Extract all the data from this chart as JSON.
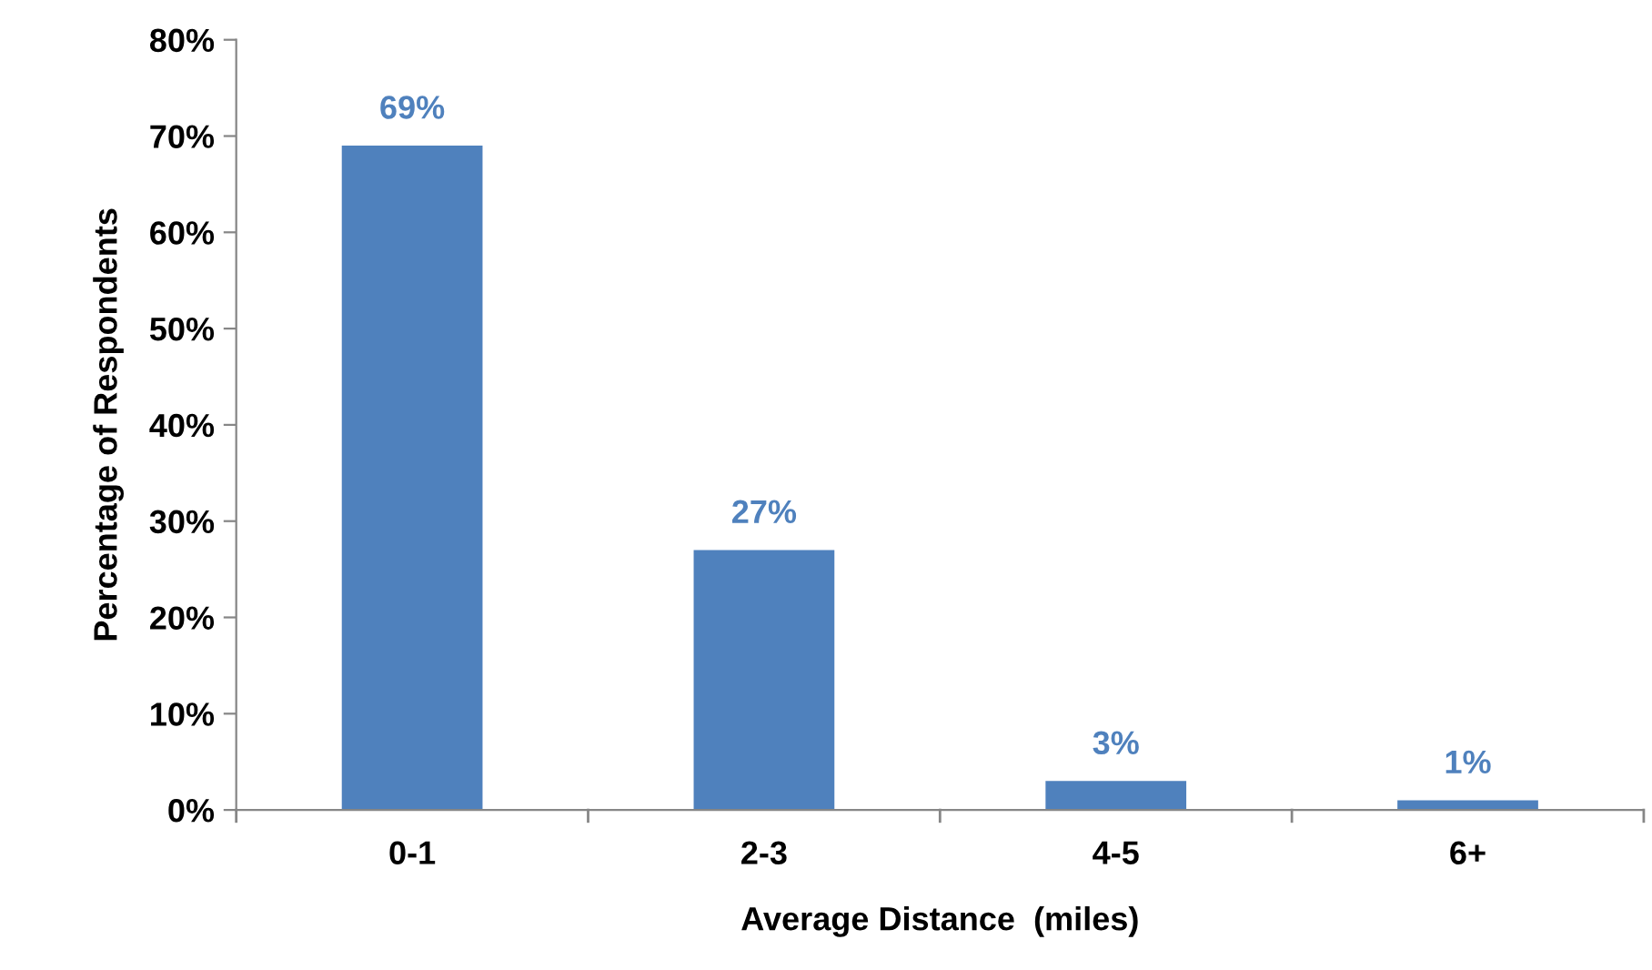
{
  "chart_data": {
    "type": "bar",
    "xlabel": "Average Distance  (miles)",
    "ylabel": "Percentage of Respondents",
    "categories": [
      "0-1",
      "2-3",
      "4-5",
      "6+"
    ],
    "values": [
      69,
      27,
      3,
      1
    ],
    "value_labels": [
      "69%",
      "27%",
      "3%",
      "1%"
    ],
    "color": "#4f81bd",
    "ylim": [
      0,
      80
    ],
    "yticks": [
      {
        "value": 0,
        "label": "0%"
      },
      {
        "value": 10,
        "label": "10%"
      },
      {
        "value": 20,
        "label": "20%"
      },
      {
        "value": 30,
        "label": "30%"
      },
      {
        "value": 40,
        "label": "40%"
      },
      {
        "value": 50,
        "label": "50%"
      },
      {
        "value": 60,
        "label": "60%"
      },
      {
        "value": 70,
        "label": "70%"
      },
      {
        "value": 80,
        "label": "80%"
      }
    ],
    "grid": false
  }
}
